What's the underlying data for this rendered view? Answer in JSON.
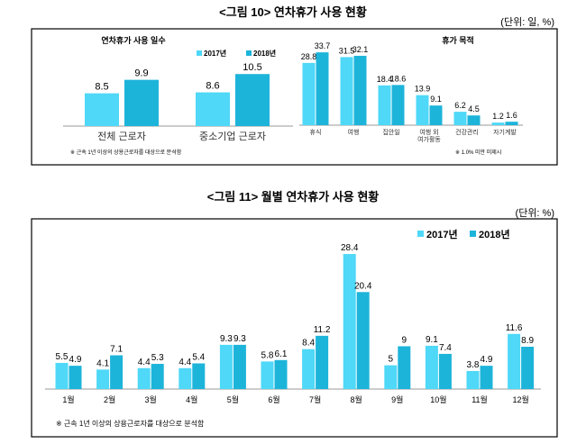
{
  "colors": {
    "y2017": "#4fd8f7",
    "y2018": "#1db4da"
  },
  "figure10": {
    "title": "<그림 10> 연차휴가 사용 현황",
    "unit": "(단위: 일, %)"
  },
  "figure11": {
    "title": "<그림 11> 월별 연차휴가 사용 현황",
    "unit": "(단위: %)"
  },
  "chart_data": [
    {
      "type": "bar",
      "title": "연차휴가 사용 일수",
      "categories": [
        "전체 근로자",
        "중소기업 근로자"
      ],
      "series": [
        {
          "name": "2017년",
          "values": [
            8.5,
            8.6
          ]
        },
        {
          "name": "2018년",
          "values": [
            9.9,
            10.5
          ]
        }
      ],
      "legend": "top",
      "grid": false,
      "note": "※ 근속 1년 이상의 상용근로자를 대상으로 분석함"
    },
    {
      "type": "bar",
      "title": "휴가 목적",
      "categories": [
        "휴식",
        "여행",
        "집안일",
        "여행 외 여가활동",
        "건강관리",
        "자기계발"
      ],
      "series": [
        {
          "name": "2017년",
          "values": [
            28.8,
            31.5,
            18.4,
            13.9,
            6.2,
            1.2
          ]
        },
        {
          "name": "2018년",
          "values": [
            33.7,
            32.1,
            18.6,
            9.1,
            4.5,
            1.6
          ]
        }
      ],
      "grid": false,
      "note": "※ 1.0% 미만 미제시"
    },
    {
      "type": "bar",
      "categories": [
        "1월",
        "2월",
        "3월",
        "4월",
        "5월",
        "6월",
        "7월",
        "8월",
        "9월",
        "10월",
        "11월",
        "12월"
      ],
      "series": [
        {
          "name": "2017년",
          "values": [
            5.5,
            4.1,
            4.4,
            4.4,
            9.3,
            5.8,
            8.4,
            28.4,
            5.0,
            9.1,
            3.8,
            11.6
          ]
        },
        {
          "name": "2018년",
          "values": [
            4.9,
            7.1,
            5.3,
            5.4,
            9.3,
            6.1,
            11.2,
            20.4,
            9.0,
            7.4,
            4.9,
            8.9
          ]
        }
      ],
      "legend": "top-right",
      "grid": false,
      "note": "※ 근속 1년 이상의 상용근로자를 대상으로 분석함"
    }
  ]
}
